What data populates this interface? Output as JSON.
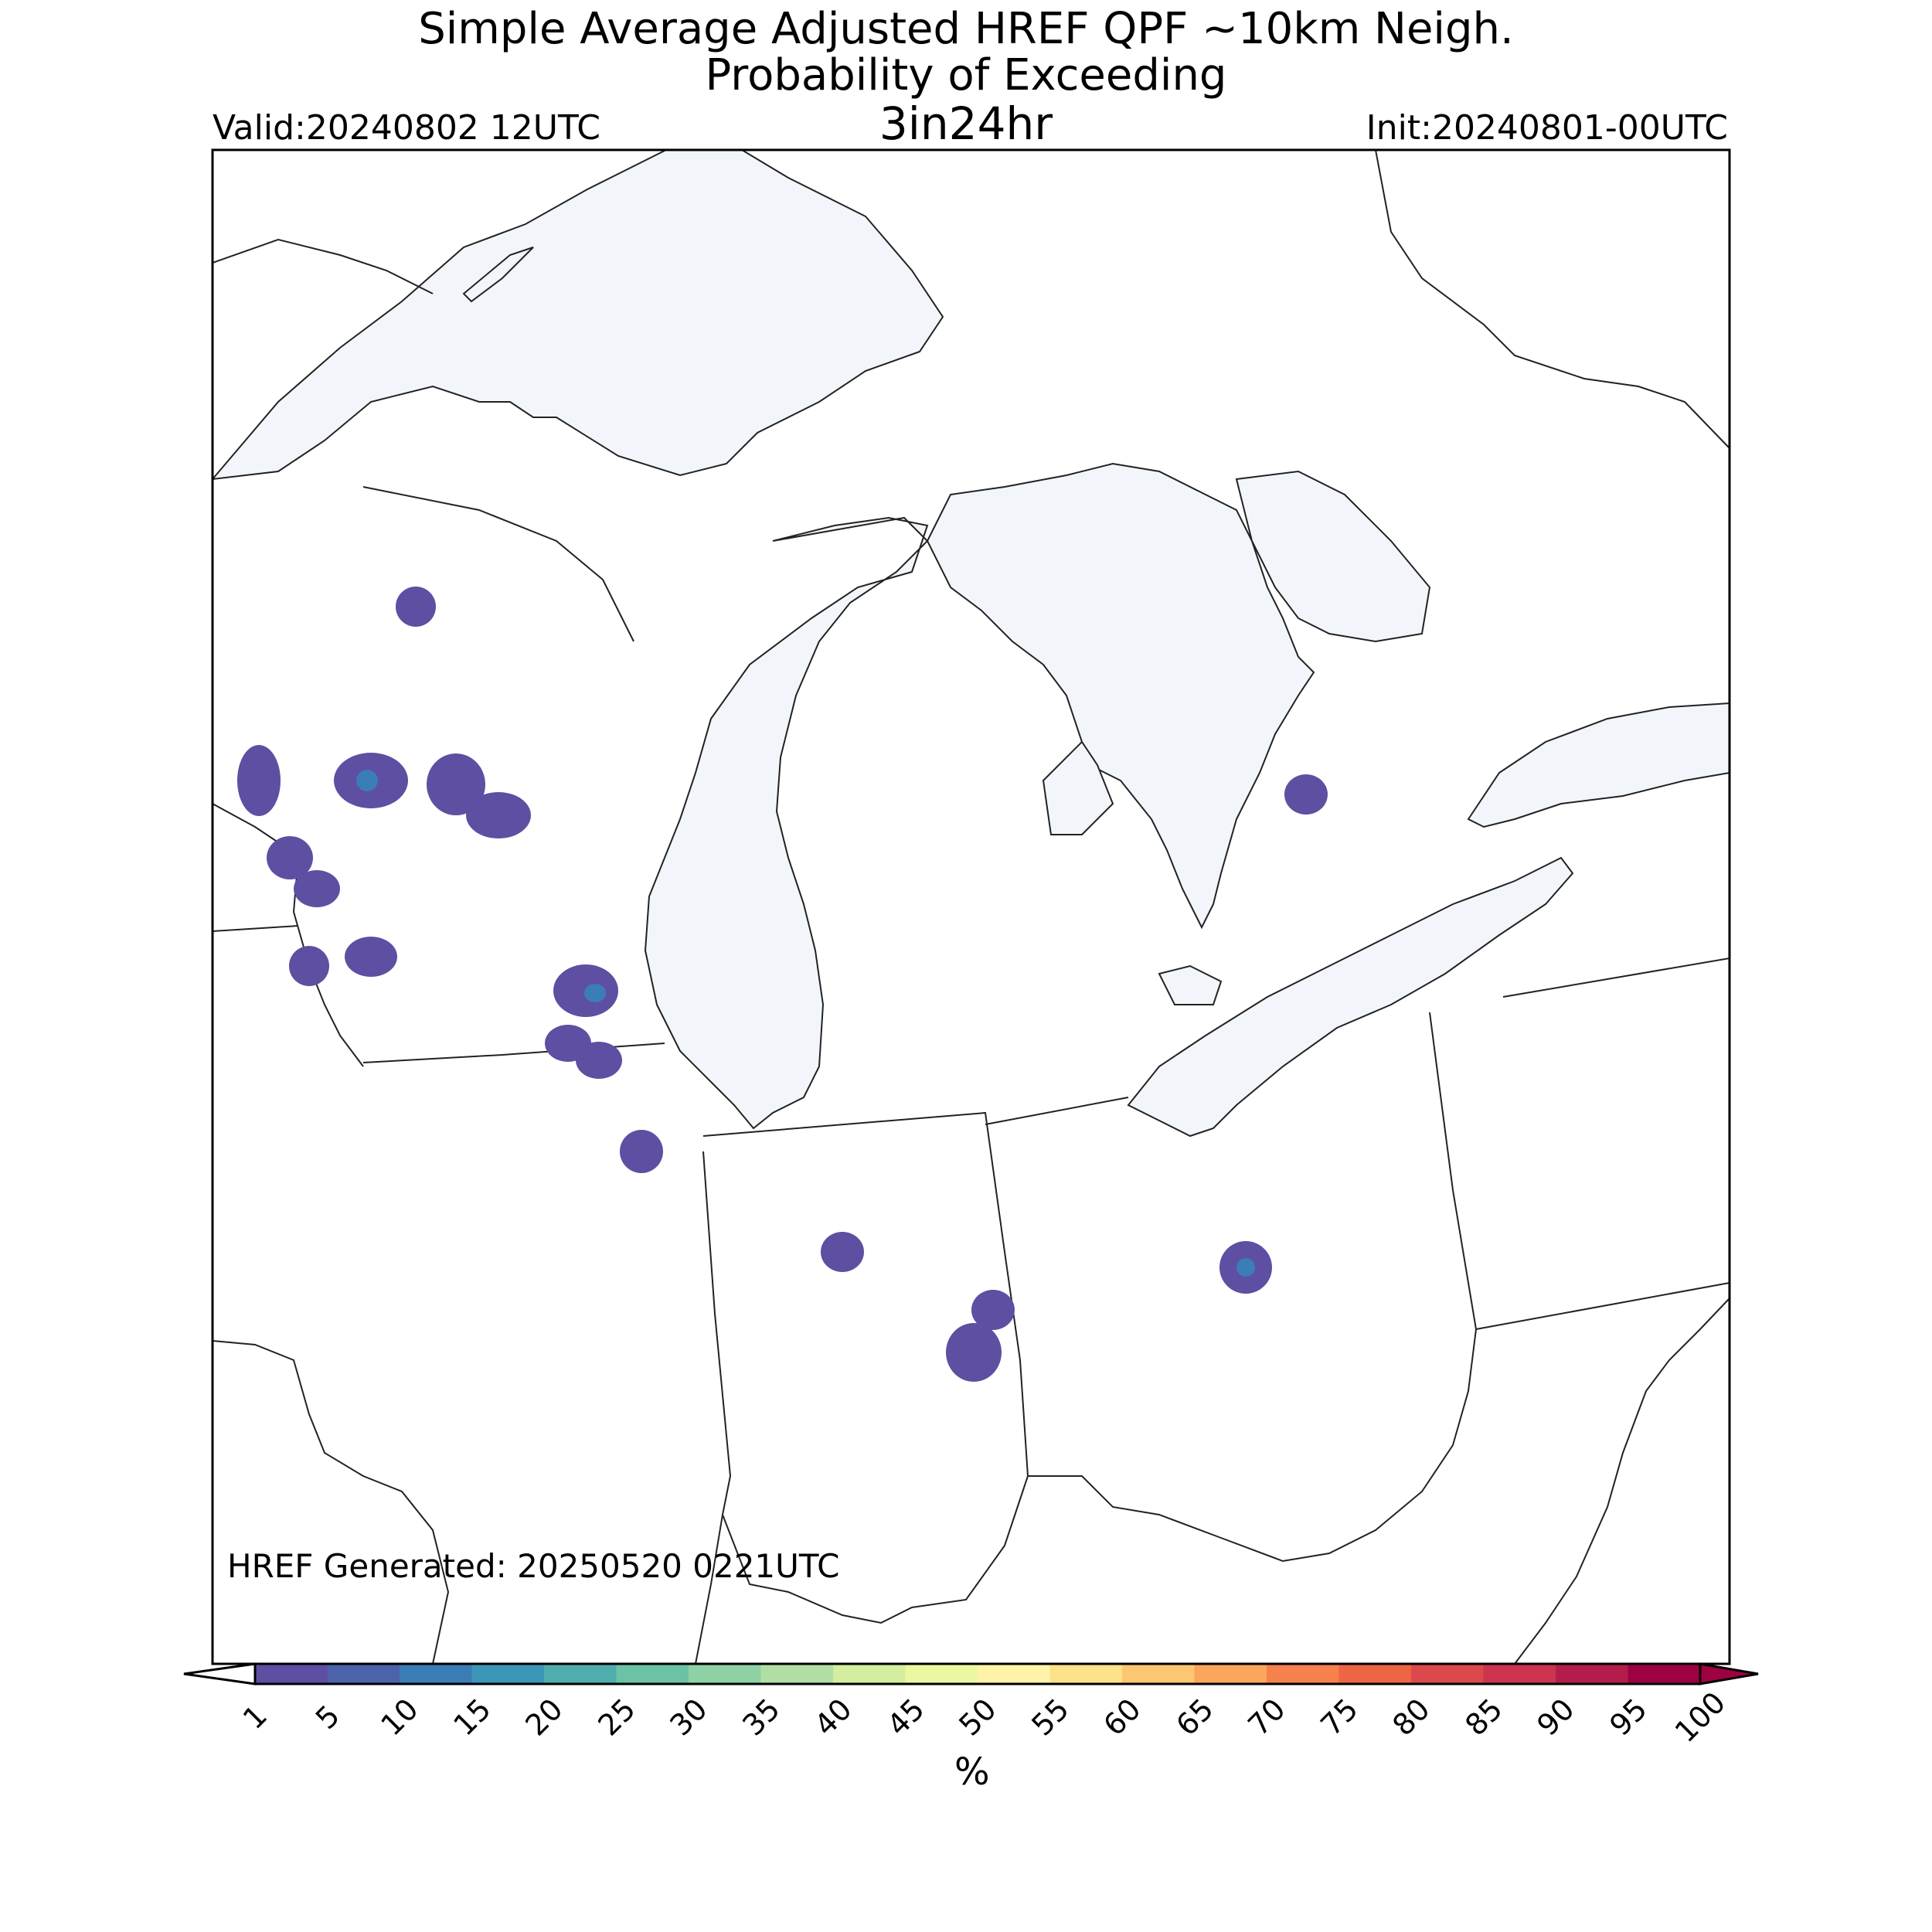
{
  "title": {
    "line1": "Simple Average Adjusted HREF QPF ~10km Neigh.",
    "line2": "Probability of Exceeding",
    "line3": "3in24hr"
  },
  "valid_label": "Valid:20240802 12UTC",
  "init_label": "Init:20240801-00UTC",
  "generated_label": "HREF Generated: 20250520 0221UTC",
  "colorbar": {
    "unit": "%",
    "ticks": [
      "1",
      "5",
      "10",
      "15",
      "20",
      "25",
      "30",
      "35",
      "40",
      "45",
      "50",
      "55",
      "60",
      "65",
      "70",
      "75",
      "80",
      "85",
      "90",
      "95",
      "100"
    ],
    "colors": [
      "#5e4fa2",
      "#4c62ab",
      "#3b7db6",
      "#3c96b8",
      "#4fadad",
      "#6bc2a4",
      "#8ed1a4",
      "#b1dfa3",
      "#d2ee9e",
      "#ecf7a2",
      "#fff3aa",
      "#fee28a",
      "#fdc673",
      "#fca55d",
      "#f7814c",
      "#ed6545",
      "#dc494c",
      "#cc334f",
      "#b41d4b",
      "#9e0142"
    ]
  },
  "map": {
    "region": "Great Lakes / Upper Midwest",
    "lake_color": "#f2f6fb",
    "blob_color_low": "#5e4fa2",
    "blob_color_mid": "#3b7db6"
  }
}
